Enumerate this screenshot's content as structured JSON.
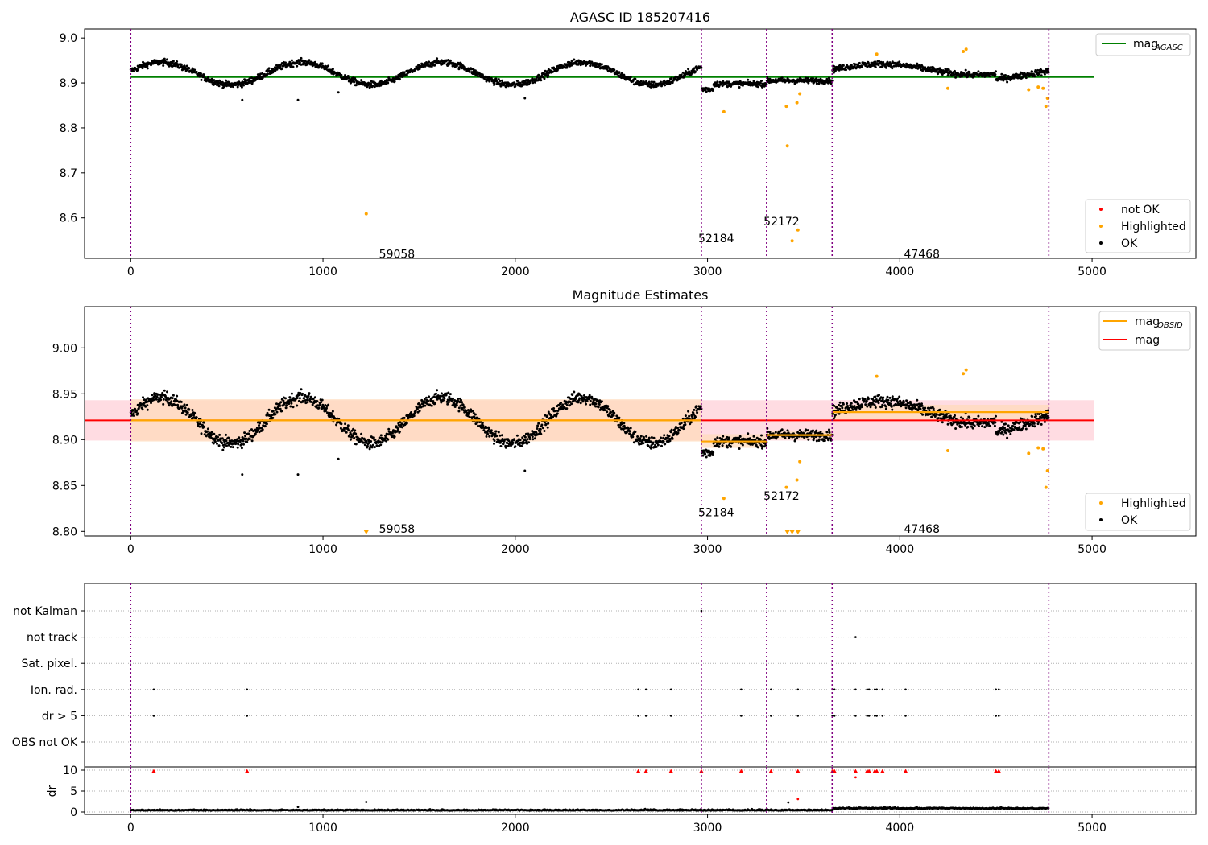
{
  "figure": {
    "background": "#ffffff",
    "colors": {
      "ok": "#000000",
      "highlighted": "#ffa500",
      "not_ok": "#ff0000",
      "agasc_line": "#008000",
      "obsid_line": "#ffa500",
      "mag_line": "#ff0000",
      "mag_band": "#ffc0cb",
      "obsid_band": "#ffdab9",
      "obs_boundary": "#800080",
      "grid": "#b0b0b0"
    }
  },
  "chart_data": [
    {
      "type": "scatter",
      "title": "AGASC ID 185207416",
      "xlim": [
        -240,
        5540
      ],
      "ylim": [
        8.51,
        9.02
      ],
      "xticks": [
        0,
        1000,
        2000,
        3000,
        4000,
        5000
      ],
      "yticks": [
        8.6,
        8.7,
        8.8,
        8.9,
        9.0
      ],
      "ytick_labels": [
        "8.6",
        "8.7",
        "8.8",
        "8.9",
        "9.0"
      ],
      "obs_boundaries": [
        0,
        2968,
        3307,
        3648,
        4775
      ],
      "obsids": [
        {
          "label": "59058",
          "x": 1480,
          "y": 8.52
        },
        {
          "label": "52184",
          "x": 3140,
          "y": 8.555
        },
        {
          "label": "52172",
          "x": 3480,
          "y": 8.592
        },
        {
          "label": "47468",
          "x": 4210,
          "y": 8.52
        }
      ],
      "lines": [
        {
          "name": "mag_AGASC",
          "y": 8.913,
          "x": [
            0,
            5010
          ]
        }
      ],
      "series_highlighted": [
        [
          1225,
          8.609
        ],
        [
          3085,
          8.836
        ],
        [
          3410,
          8.848
        ],
        [
          3415,
          8.76
        ],
        [
          3440,
          8.549
        ],
        [
          3465,
          8.856
        ],
        [
          3470,
          8.573
        ],
        [
          3480,
          8.876
        ],
        [
          3880,
          8.964
        ],
        [
          4250,
          8.888
        ],
        [
          4330,
          8.97
        ],
        [
          4345,
          8.975
        ],
        [
          4670,
          8.885
        ],
        [
          4720,
          8.891
        ],
        [
          4745,
          8.888
        ],
        [
          4760,
          8.848
        ],
        [
          4768,
          8.866
        ]
      ],
      "series_ok_outliers": [
        [
          580,
          8.862
        ],
        [
          870,
          8.862
        ],
        [
          1080,
          8.879
        ],
        [
          2050,
          8.866
        ]
      ],
      "legend": {
        "position": "lower right",
        "entries": [
          {
            "label": "not OK",
            "color": "#ff0000"
          },
          {
            "label": "Highlighted",
            "color": "#ffa500"
          },
          {
            "label": "OK",
            "color": "#000000"
          }
        ]
      },
      "legend_line": {
        "position": "upper right",
        "entries": [
          {
            "label": "mag",
            "sub": "AGASC",
            "color": "#008000"
          }
        ]
      }
    },
    {
      "type": "scatter",
      "title": "Magnitude Estimates",
      "xlim": [
        -240,
        5540
      ],
      "ylim": [
        8.795,
        9.045
      ],
      "xticks": [
        0,
        1000,
        2000,
        3000,
        4000,
        5000
      ],
      "yticks": [
        8.8,
        8.85,
        8.9,
        8.95,
        9.0
      ],
      "ytick_labels": [
        "8.80",
        "8.85",
        "8.90",
        "8.95",
        "9.00"
      ],
      "obs_boundaries": [
        0,
        2968,
        3307,
        3648,
        4775
      ],
      "obsids": [
        {
          "label": "59058",
          "x": 1480,
          "y": 8.803
        },
        {
          "label": "52184",
          "x": 3140,
          "y": 8.821
        },
        {
          "label": "52172",
          "x": 3480,
          "y": 8.839
        },
        {
          "label": "47468",
          "x": 4210,
          "y": 8.803
        }
      ],
      "mag_line": {
        "y": 8.921,
        "x": [
          -240,
          5010
        ]
      },
      "mag_band": {
        "y": [
          8.899,
          8.943
        ],
        "x": [
          -240,
          5010
        ]
      },
      "obsid_segments": [
        {
          "x": [
            0,
            2968
          ],
          "y": 8.921,
          "band": [
            8.898,
            8.944
          ]
        },
        {
          "x": [
            2968,
            3307
          ],
          "y": 8.898,
          "band": [
            8.891,
            8.906
          ]
        },
        {
          "x": [
            3307,
            3648
          ],
          "y": 8.905,
          "band": [
            8.9,
            8.91
          ]
        },
        {
          "x": [
            3648,
            4775
          ],
          "y": 8.93,
          "band": [
            8.922,
            8.938
          ]
        }
      ],
      "series_highlighted": [
        [
          3085,
          8.836
        ],
        [
          3410,
          8.848
        ],
        [
          3465,
          8.856
        ],
        [
          3480,
          8.876
        ],
        [
          3880,
          8.969
        ],
        [
          4250,
          8.888
        ],
        [
          4330,
          8.972
        ],
        [
          4345,
          8.976
        ],
        [
          4670,
          8.885
        ],
        [
          4720,
          8.891
        ],
        [
          4745,
          8.89
        ],
        [
          4760,
          8.848
        ],
        [
          4768,
          8.866
        ]
      ],
      "series_clipped": [
        1225,
        3415,
        3440,
        3470
      ],
      "series_ok_outliers": [
        [
          580,
          8.862
        ],
        [
          870,
          8.862
        ],
        [
          1080,
          8.879
        ],
        [
          2050,
          8.866
        ]
      ],
      "legend": {
        "position": "lower right",
        "entries": [
          {
            "label": "Highlighted",
            "color": "#ffa500"
          },
          {
            "label": "OK",
            "color": "#000000"
          }
        ]
      },
      "legend_line": {
        "position": "upper right",
        "entries": [
          {
            "label": "mag",
            "sub": "OBSID",
            "color": "#ffa500"
          },
          {
            "label": "mag",
            "sub": "",
            "color": "#ff0000"
          }
        ]
      }
    },
    {
      "type": "scatter",
      "title": "",
      "xlim": [
        -240,
        5540
      ],
      "xticks": [
        0,
        1000,
        2000,
        3000,
        4000,
        5000
      ],
      "flag_categories": [
        "not Kalman",
        "not track",
        "Sat. pixel.",
        "Ion. rad.",
        "dr > 5",
        "OBS not OK"
      ],
      "obs_boundaries": [
        0,
        2968,
        3307,
        3648,
        4775
      ],
      "flags": {
        "not Kalman": [
          2968
        ],
        "not track": [
          3770
        ],
        "Sat. pixel.": [],
        "Ion. rad.": [
          120,
          605,
          2640,
          2680,
          2810,
          3175,
          3330,
          3470,
          3650,
          3660,
          3770,
          3830,
          3840,
          3870,
          3880,
          3910,
          4030,
          4500,
          4515
        ],
        "dr > 5": [
          120,
          605,
          2640,
          2680,
          2810,
          3175,
          3330,
          3470,
          3650,
          3660,
          3770,
          3830,
          3840,
          3870,
          3880,
          3910,
          4030,
          4500,
          4515
        ],
        "OBS not OK": []
      },
      "dr_ylim": [
        0,
        11
      ],
      "dr_yticks": [
        0,
        5,
        10
      ],
      "ylabel": "dr",
      "dr_clipped": [
        120,
        605,
        2640,
        2680,
        2810,
        2968,
        3175,
        3330,
        3470,
        3650,
        3660,
        3770,
        3830,
        3840,
        3870,
        3880,
        3910,
        4030,
        4500,
        4515
      ],
      "dr_outliers": [
        [
          870,
          1.2
        ],
        [
          1225,
          2.4
        ],
        [
          3420,
          2.3
        ],
        [
          3470,
          3.1
        ],
        [
          3770,
          8.3
        ]
      ]
    }
  ]
}
